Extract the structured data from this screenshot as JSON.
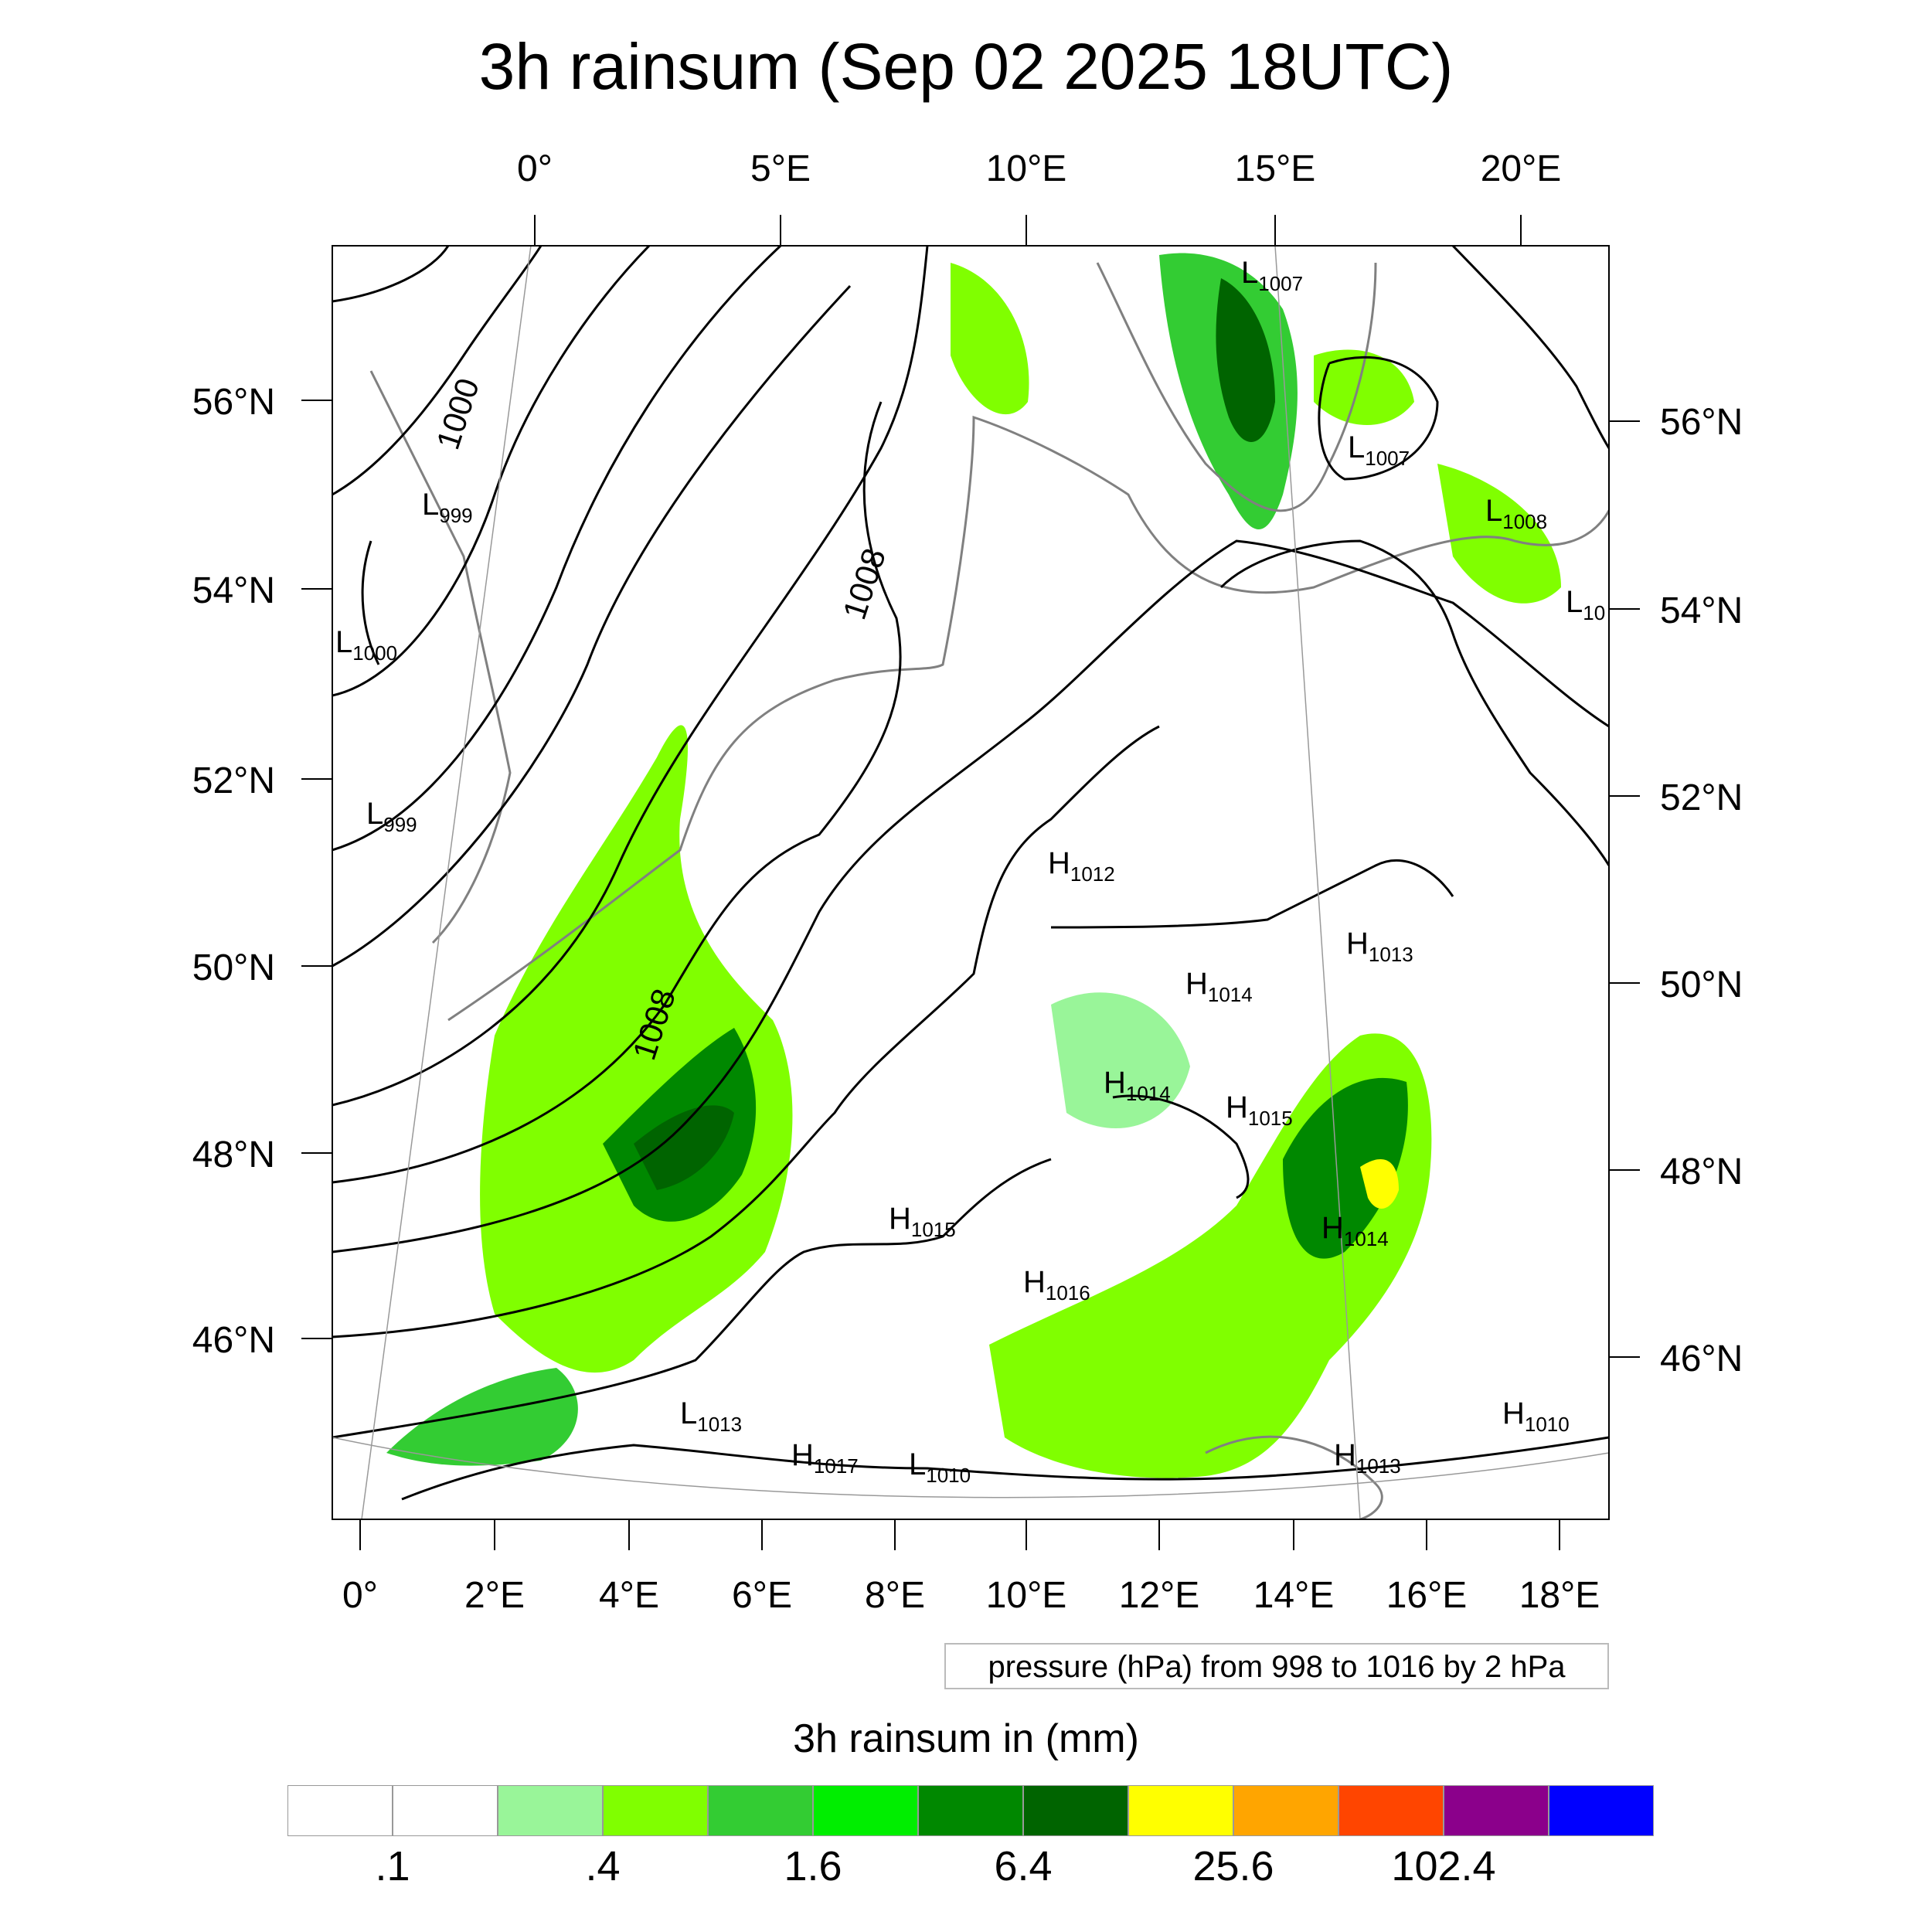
{
  "title": "3h rainsum (Sep 02 2025 18UTC)",
  "top_lon_labels": [
    "0°",
    "5°E",
    "10°E",
    "15°E",
    "20°E"
  ],
  "bottom_lon_labels": [
    "0°",
    "2°E",
    "4°E",
    "6°E",
    "8°E",
    "10°E",
    "12°E",
    "14°E",
    "16°E",
    "18°E"
  ],
  "left_lat_labels": [
    "56°N",
    "54°N",
    "52°N",
    "50°N",
    "48°N",
    "46°N"
  ],
  "right_lat_labels": [
    "56°N",
    "54°N",
    "52°N",
    "50°N",
    "48°N",
    "46°N"
  ],
  "contour_labels": [
    "1000",
    "1008",
    "1008"
  ],
  "pressure_systems": [
    {
      "type": "L",
      "value": "1007"
    },
    {
      "type": "L",
      "value": "1007"
    },
    {
      "type": "L",
      "value": "1008"
    },
    {
      "type": "L",
      "value": "10"
    },
    {
      "type": "L",
      "value": "999"
    },
    {
      "type": "L",
      "value": "1000"
    },
    {
      "type": "L",
      "value": "999"
    },
    {
      "type": "H",
      "value": "1012"
    },
    {
      "type": "H",
      "value": "1013"
    },
    {
      "type": "H",
      "value": "1014"
    },
    {
      "type": "H",
      "value": "1014"
    },
    {
      "type": "H",
      "value": "1015"
    },
    {
      "type": "H",
      "value": "1015"
    },
    {
      "type": "H",
      "value": "1014"
    },
    {
      "type": "H",
      "value": "1016"
    },
    {
      "type": "L",
      "value": "1013"
    },
    {
      "type": "H",
      "value": "1017"
    },
    {
      "type": "L",
      "value": "1010"
    },
    {
      "type": "H",
      "value": "1013"
    },
    {
      "type": "H",
      "value": "1010"
    }
  ],
  "info_text": "pressure (hPa) from 998 to 1016 by 2 hPa",
  "colorbar": {
    "title": "3h rainsum in (mm)",
    "colors": [
      "#ffffff",
      "#ffffff",
      "#99f599",
      "#80ff00",
      "#33cc33",
      "#00ee00",
      "#008800",
      "#006400",
      "#ffff00",
      "#ffa500",
      "#ff4500",
      "#8b008b",
      "#0000ff"
    ],
    "labels": [
      ".1",
      ".4",
      "1.6",
      "6.4",
      "25.6",
      "102.4"
    ]
  }
}
